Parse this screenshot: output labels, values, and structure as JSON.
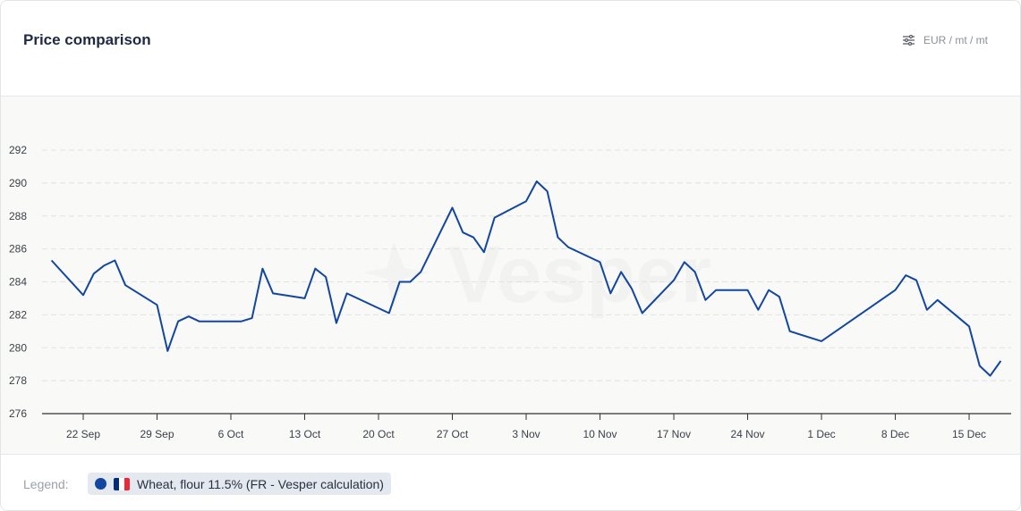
{
  "header": {
    "title": "Price comparison",
    "unit_label": "EUR / mt / mt",
    "unit_icon": "sliders-icon"
  },
  "watermark": "Vesper",
  "legend": {
    "label": "Legend:",
    "series_label": "Wheat, flour 11.5% (FR - Vesper calculation)",
    "flag": "france-flag-icon"
  },
  "colors": {
    "series": "#1246a0",
    "flag_blue": "#002b7f",
    "flag_white": "#ffffff",
    "flag_red": "#ed2939"
  },
  "chart_data": {
    "type": "line",
    "title": "Price comparison",
    "xlabel": "",
    "ylabel": "EUR / mt / mt",
    "ylim": [
      276,
      292
    ],
    "yticks": [
      276,
      278,
      280,
      282,
      284,
      286,
      288,
      290,
      292
    ],
    "xticks": [
      "22 Sep",
      "29 Sep",
      "6 Oct",
      "13 Oct",
      "20 Oct",
      "27 Oct",
      "3 Nov",
      "10 Nov",
      "17 Nov",
      "24 Nov",
      "1 Dec",
      "8 Dec",
      "15 Dec"
    ],
    "grid": true,
    "legend_position": "bottom",
    "series": [
      {
        "name": "Wheat, flour 11.5% (FR - Vesper calculation)",
        "x": [
          "19 Sep",
          "22 Sep",
          "23 Sep",
          "24 Sep",
          "25 Sep",
          "26 Sep",
          "29 Sep",
          "30 Sep",
          "1 Oct",
          "2 Oct",
          "3 Oct",
          "6 Oct",
          "7 Oct",
          "8 Oct",
          "9 Oct",
          "10 Oct",
          "13 Oct",
          "14 Oct",
          "15 Oct",
          "16 Oct",
          "17 Oct",
          "21 Oct",
          "22 Oct",
          "23 Oct",
          "24 Oct",
          "27 Oct",
          "28 Oct",
          "29 Oct",
          "30 Oct",
          "31 Oct",
          "3 Nov",
          "4 Nov",
          "5 Nov",
          "6 Nov",
          "7 Nov",
          "10 Nov",
          "11 Nov",
          "12 Nov",
          "13 Nov",
          "14 Nov",
          "17 Nov",
          "18 Nov",
          "19 Nov",
          "20 Nov",
          "21 Nov",
          "24 Nov",
          "25 Nov",
          "26 Nov",
          "27 Nov",
          "28 Nov",
          "1 Dec",
          "8 Dec",
          "9 Dec",
          "10 Dec",
          "11 Dec",
          "12 Dec",
          "15 Dec",
          "16 Dec",
          "17 Dec",
          "18 Dec"
        ],
        "values": [
          285.3,
          283.2,
          284.5,
          285.0,
          285.3,
          283.8,
          282.6,
          279.8,
          281.6,
          281.9,
          281.6,
          281.6,
          281.6,
          281.8,
          284.8,
          283.3,
          283.0,
          284.8,
          284.3,
          281.5,
          283.3,
          282.1,
          284.0,
          284.0,
          284.6,
          288.5,
          287.0,
          286.7,
          285.8,
          287.9,
          288.9,
          290.1,
          289.5,
          286.7,
          286.1,
          285.2,
          283.3,
          284.6,
          283.6,
          282.1,
          284.1,
          285.2,
          284.6,
          282.9,
          283.5,
          283.5,
          282.3,
          283.5,
          283.1,
          281.0,
          280.4,
          283.5,
          284.4,
          284.1,
          282.3,
          282.9,
          281.3,
          278.9,
          278.3,
          279.2
        ]
      }
    ]
  }
}
